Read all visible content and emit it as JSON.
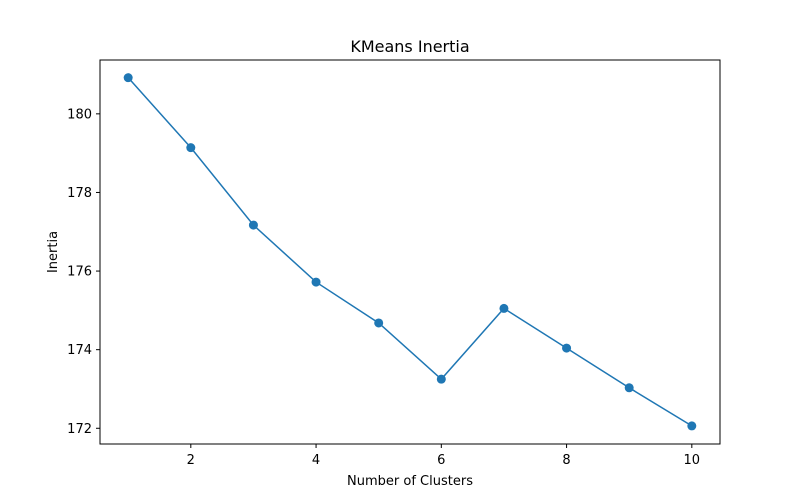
{
  "chart_data": {
    "type": "line",
    "title": "KMeans Inertia",
    "xlabel": "Number of Clusters",
    "ylabel": "Inertia",
    "x": [
      1,
      2,
      3,
      4,
      5,
      6,
      7,
      8,
      9,
      10
    ],
    "series": [
      {
        "name": "Inertia",
        "values": [
          180.92,
          179.14,
          177.17,
          175.72,
          174.68,
          173.25,
          175.05,
          174.04,
          173.03,
          172.06
        ],
        "color": "#1f77b4",
        "marker": "circle"
      }
    ],
    "xlim": [
      0.55,
      10.45
    ],
    "ylim": [
      171.6,
      181.37
    ],
    "xticks": [
      2,
      4,
      6,
      8,
      10
    ],
    "yticks": [
      172,
      174,
      176,
      178,
      180
    ],
    "grid": false,
    "legend": "none"
  }
}
